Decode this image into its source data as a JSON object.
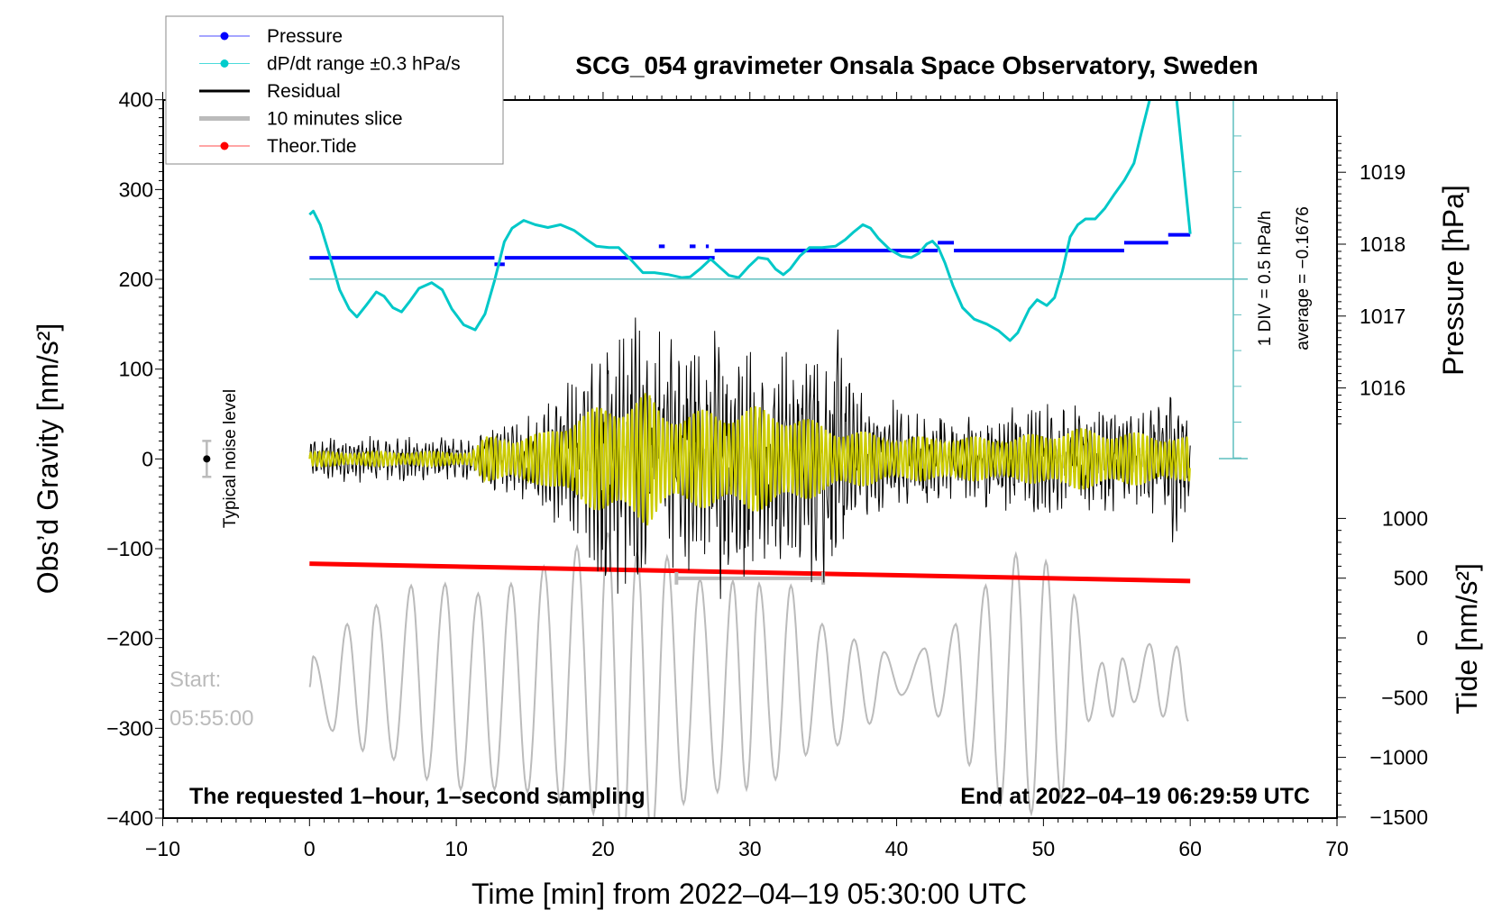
{
  "chart_data": {
    "type": "line",
    "title": "SCG_054 gravimeter Onsala Space Observatory, Sweden",
    "xlabel": "Time [min] from 2022–04–19 05:30:00 UTC",
    "ylabel": "Obs’d Gravity [nm/s²]",
    "ylabel_right_top": "Pressure [hPa]",
    "ylabel_right_bottom": "Tide [nm/s²]",
    "xlim": [
      -10,
      70
    ],
    "ylim": [
      -400,
      400
    ],
    "pressure_lim": [
      1015.5,
      1019.5
    ],
    "tide_lim": [
      -1500,
      1000
    ],
    "x_ticks": [
      {
        "v": -10,
        "l": "−10"
      },
      {
        "v": 0,
        "l": "0"
      },
      {
        "v": 10,
        "l": "10"
      },
      {
        "v": 20,
        "l": "20"
      },
      {
        "v": 30,
        "l": "30"
      },
      {
        "v": 40,
        "l": "40"
      },
      {
        "v": 50,
        "l": "50"
      },
      {
        "v": 60,
        "l": "60"
      },
      {
        "v": 70,
        "l": "70"
      }
    ],
    "y_ticks": [
      {
        "v": 400,
        "l": "400"
      },
      {
        "v": 300,
        "l": "300"
      },
      {
        "v": 200,
        "l": "200"
      },
      {
        "v": 100,
        "l": "100"
      },
      {
        "v": 0,
        "l": "0"
      },
      {
        "v": -100,
        "l": "−100"
      },
      {
        "v": -200,
        "l": "−200"
      },
      {
        "v": -300,
        "l": "−300"
      },
      {
        "v": -400,
        "l": "−400"
      }
    ],
    "pressure_ticks": [
      {
        "v": 1019,
        "l": "1019"
      },
      {
        "v": 1018,
        "l": "1018"
      },
      {
        "v": 1017,
        "l": "1017"
      },
      {
        "v": 1016,
        "l": "1016"
      }
    ],
    "tide_ticks": [
      {
        "v": 1000,
        "l": "1000"
      },
      {
        "v": 500,
        "l": "500"
      },
      {
        "v": 0,
        "l": "0"
      },
      {
        "v": -500,
        "l": "−500"
      },
      {
        "v": -1000,
        "l": "−1000"
      },
      {
        "v": -1500,
        "l": "−1500"
      }
    ],
    "legend": {
      "position": "top-left",
      "entries": [
        {
          "label": "Pressure",
          "color": "#0000ff",
          "marker": true,
          "width": 1
        },
        {
          "label": "dP/dt range ±0.3 hPa/s",
          "color": "#00cccc",
          "marker": true,
          "width": 1
        },
        {
          "label": "Residual",
          "color": "#000000",
          "marker": false,
          "width": 3
        },
        {
          "label": "10 minutes slice",
          "color": "#bbbbbb",
          "marker": false,
          "width": 5
        },
        {
          "label": "Theor.Tide",
          "color": "#ff0000",
          "marker": true,
          "width": 1
        }
      ]
    },
    "series": {
      "pressure_hPa_segments": [
        [
          0,
          12.6,
          1017.81
        ],
        [
          12.6,
          13.3,
          1017.72
        ],
        [
          13.3,
          27.6,
          1017.81
        ],
        [
          23.8,
          24.2,
          1017.97
        ],
        [
          25.9,
          26.3,
          1017.97
        ],
        [
          27.0,
          27.2,
          1017.97
        ],
        [
          27.6,
          42.8,
          1017.91
        ],
        [
          42.8,
          43.9,
          1018.02
        ],
        [
          43.9,
          55.5,
          1017.91
        ],
        [
          55.5,
          58.5,
          1018.02
        ],
        [
          58.5,
          60,
          1018.13
        ]
      ],
      "dPdt_hPa_per_h": [
        [
          0,
          0.9
        ],
        [
          0.26,
          0.95
        ],
        [
          0.73,
          0.76
        ],
        [
          1.39,
          0.32
        ],
        [
          2.05,
          -0.15
        ],
        [
          2.71,
          -0.42
        ],
        [
          3.23,
          -0.53
        ],
        [
          3.89,
          -0.36
        ],
        [
          4.55,
          -0.18
        ],
        [
          5.08,
          -0.24
        ],
        [
          5.68,
          -0.4
        ],
        [
          6.27,
          -0.46
        ],
        [
          6.8,
          -0.32
        ],
        [
          7.46,
          -0.13
        ],
        [
          8.32,
          -0.05
        ],
        [
          9.04,
          -0.15
        ],
        [
          9.7,
          -0.42
        ],
        [
          10.5,
          -0.64
        ],
        [
          11.29,
          -0.71
        ],
        [
          11.95,
          -0.49
        ],
        [
          12.61,
          -0.02
        ],
        [
          13.27,
          0.52
        ],
        [
          13.8,
          0.71
        ],
        [
          14.59,
          0.82
        ],
        [
          15.38,
          0.76
        ],
        [
          16.24,
          0.72
        ],
        [
          17.1,
          0.76
        ],
        [
          18.02,
          0.68
        ],
        [
          18.88,
          0.55
        ],
        [
          19.54,
          0.46
        ],
        [
          20.4,
          0.44
        ],
        [
          21.06,
          0.44
        ],
        [
          21.85,
          0.28
        ],
        [
          22.71,
          0.09
        ],
        [
          23.5,
          0.09
        ],
        [
          24.49,
          0.06
        ],
        [
          25.35,
          0.02
        ],
        [
          25.94,
          0.03
        ],
        [
          26.6,
          0.14
        ],
        [
          27.33,
          0.28
        ],
        [
          27.92,
          0.17
        ],
        [
          28.58,
          0.05
        ],
        [
          29.24,
          0.02
        ],
        [
          29.9,
          0.17
        ],
        [
          30.56,
          0.3
        ],
        [
          31.22,
          0.28
        ],
        [
          31.75,
          0.14
        ],
        [
          32.28,
          0.06
        ],
        [
          32.74,
          0.14
        ],
        [
          33.4,
          0.32
        ],
        [
          34.06,
          0.44
        ],
        [
          34.92,
          0.44
        ],
        [
          35.84,
          0.46
        ],
        [
          36.5,
          0.55
        ],
        [
          37.03,
          0.65
        ],
        [
          37.69,
          0.76
        ],
        [
          38.22,
          0.71
        ],
        [
          38.75,
          0.57
        ],
        [
          39.54,
          0.41
        ],
        [
          40.33,
          0.32
        ],
        [
          40.99,
          0.3
        ],
        [
          41.52,
          0.36
        ],
        [
          42.05,
          0.49
        ],
        [
          42.44,
          0.53
        ],
        [
          42.84,
          0.44
        ],
        [
          43.3,
          0.22
        ],
        [
          43.83,
          -0.09
        ],
        [
          44.49,
          -0.4
        ],
        [
          45.28,
          -0.56
        ],
        [
          46.14,
          -0.63
        ],
        [
          46.93,
          -0.72
        ],
        [
          47.72,
          -0.86
        ],
        [
          48.25,
          -0.75
        ],
        [
          49.04,
          -0.42
        ],
        [
          49.57,
          -0.29
        ],
        [
          50.23,
          -0.37
        ],
        [
          50.76,
          -0.26
        ],
        [
          51.29,
          0.11
        ],
        [
          51.82,
          0.59
        ],
        [
          52.34,
          0.76
        ],
        [
          52.87,
          0.84
        ],
        [
          53.53,
          0.84
        ],
        [
          54.19,
          0.99
        ],
        [
          54.85,
          1.19
        ],
        [
          55.51,
          1.38
        ],
        [
          56.17,
          1.62
        ],
        [
          56.7,
          2.07
        ],
        [
          57.23,
          2.5
        ],
        [
          58.1,
          3.2
        ],
        [
          59.08,
          2.5
        ],
        [
          60,
          0.63
        ]
      ],
      "dPdt_reference_hPa_per_h": 0,
      "residual_envelope_nm_s2": {
        "t": [
          0,
          6,
          11,
          12,
          14,
          16,
          18,
          19,
          20,
          22,
          24,
          26,
          28,
          29,
          30,
          31,
          33,
          34,
          36,
          37,
          40,
          42,
          50,
          56,
          58,
          59,
          60
        ],
        "amp": [
          25,
          28,
          25,
          35,
          45,
          60,
          100,
          120,
          150,
          160,
          150,
          140,
          160,
          175,
          150,
          120,
          130,
          150,
          160,
          80,
          70,
          60,
          65,
          60,
          70,
          100,
          60
        ]
      },
      "filtered_envelope_nm_s2": {
        "t": [
          0,
          11,
          12,
          14,
          16,
          18,
          20,
          22,
          23,
          24,
          26,
          28,
          30,
          32,
          34,
          36,
          40,
          44,
          48,
          52,
          56,
          60
        ],
        "amp": [
          8,
          8,
          25,
          25,
          30,
          50,
          60,
          70,
          75,
          55,
          55,
          55,
          60,
          55,
          45,
          35,
          25,
          25,
          25,
          35,
          30,
          25
        ]
      },
      "tide_nm_s2": [
        [
          0,
          621
        ],
        [
          60,
          476
        ]
      ],
      "slice_10min_nm_s2": [
        [
          0,
          -254
        ],
        [
          0.26,
          -220
        ],
        [
          1.58,
          -303
        ],
        [
          2.57,
          -184
        ],
        [
          3.63,
          -325
        ],
        [
          4.55,
          -163
        ],
        [
          5.74,
          -335
        ],
        [
          6.93,
          -141
        ],
        [
          7.99,
          -357
        ],
        [
          9.24,
          -139
        ],
        [
          10.3,
          -368
        ],
        [
          11.49,
          -150
        ],
        [
          12.6,
          -368
        ],
        [
          13.73,
          -139
        ],
        [
          14.85,
          -371
        ],
        [
          15.97,
          -120
        ],
        [
          17.1,
          -384
        ],
        [
          18.22,
          -98
        ],
        [
          19.34,
          -395
        ],
        [
          20.33,
          -82
        ],
        [
          21.32,
          -443
        ],
        [
          22.31,
          -104
        ],
        [
          23.3,
          -427
        ],
        [
          24.36,
          -109
        ],
        [
          25.48,
          -384
        ],
        [
          26.6,
          -134
        ],
        [
          27.79,
          -371
        ],
        [
          28.84,
          -136
        ],
        [
          29.77,
          -368
        ],
        [
          30.63,
          -139
        ],
        [
          31.75,
          -357
        ],
        [
          32.8,
          -141
        ],
        [
          33.8,
          -330
        ],
        [
          34.92,
          -184
        ],
        [
          35.97,
          -319
        ],
        [
          37.1,
          -201
        ],
        [
          38.15,
          -295
        ],
        [
          39.14,
          -215
        ],
        [
          40.33,
          -263
        ],
        [
          41.91,
          -211
        ],
        [
          42.84,
          -287
        ],
        [
          44.03,
          -184
        ],
        [
          44.95,
          -341
        ],
        [
          46.07,
          -141
        ],
        [
          47.06,
          -384
        ],
        [
          48.12,
          -106
        ],
        [
          49.17,
          -395
        ],
        [
          50.17,
          -114
        ],
        [
          51.22,
          -378
        ],
        [
          52.08,
          -152
        ],
        [
          53.07,
          -292
        ],
        [
          54.0,
          -227
        ],
        [
          54.72,
          -287
        ],
        [
          55.38,
          -222
        ],
        [
          56.17,
          -271
        ],
        [
          57.23,
          -206
        ],
        [
          58.15,
          -287
        ],
        [
          59.08,
          -209
        ],
        [
          59.87,
          -292
        ]
      ],
      "slice_window_min": [
        25,
        35
      ],
      "slice_window_level_nm_s2": -133,
      "noise_level_nm_s2": {
        "t": -7,
        "center": 0,
        "halfwidth": 20
      }
    },
    "annotations": {
      "div_note": "1 DIV = 0.5 hPa/h",
      "average_note": "average = −0.1676",
      "noise_label": "Typical noise level",
      "start_label": "Start:",
      "start_time": "05:55:00",
      "sampling_note": "The requested 1–hour, 1–second sampling",
      "end_note": "End at 2022–04–19 06:29:59 UTC"
    },
    "colors": {
      "pressure": "#0000ff",
      "dpdt": "#00c8c8",
      "dpdt_axis": "#5fbfbf",
      "residual": "#000000",
      "filtered": "#cccc00",
      "slice": "#bbbbbb",
      "tide": "#ff0000"
    }
  }
}
